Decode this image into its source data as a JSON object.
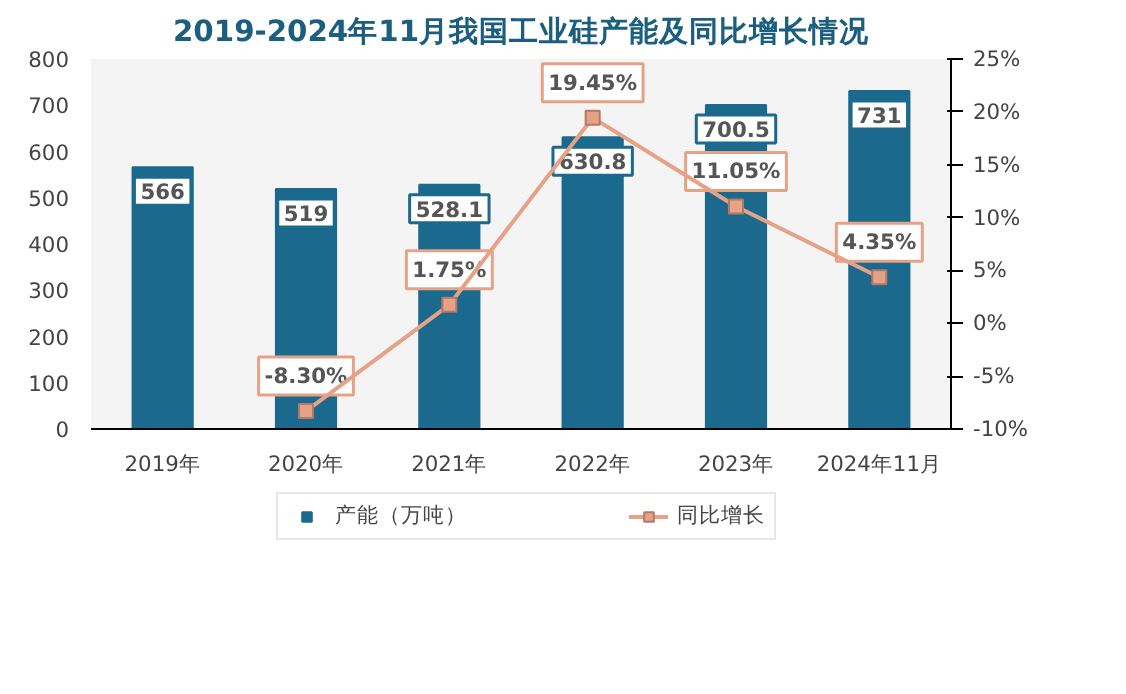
{
  "chart_data": {
    "type": "bar",
    "title": "2019-2024年11月我国工业硅产能及同比增长情况",
    "categories": [
      "2019年",
      "2020年",
      "2021年",
      "2022年",
      "2023年",
      "2024年11月"
    ],
    "series": [
      {
        "name": "产能（万吨）",
        "color": "#1b6a8e",
        "values": [
          566,
          519,
          528.1,
          630.8,
          700.5,
          731
        ],
        "value_labels": [
          "566",
          "519",
          "528.1",
          "630.8",
          "700.5",
          "731"
        ]
      },
      {
        "name": "同比增长",
        "type": "line",
        "axis": "y2",
        "color": "#e5a287",
        "values": [
          null,
          -8.3,
          1.75,
          19.45,
          11.05,
          4.35
        ],
        "value_labels": [
          null,
          "-8.30%",
          "1.75%",
          "19.45%",
          "11.05%",
          "4.35%"
        ]
      }
    ],
    "ylim": [
      0,
      800
    ],
    "yticks": [
      0,
      100,
      200,
      300,
      400,
      500,
      600,
      700,
      800
    ],
    "y2lim": [
      -10,
      25
    ],
    "y2ticks": [
      {
        "value": -10,
        "label": "-10%"
      },
      {
        "value": -5,
        "label": "-5%"
      },
      {
        "value": 0,
        "label": "0%"
      },
      {
        "value": 5,
        "label": "5%"
      },
      {
        "value": 10,
        "label": "10%"
      },
      {
        "value": 15,
        "label": "15%"
      },
      {
        "value": 20,
        "label": "20%"
      },
      {
        "value": 25,
        "label": "25%"
      }
    ],
    "legend": "bottom",
    "marker": "square",
    "grid": false
  }
}
